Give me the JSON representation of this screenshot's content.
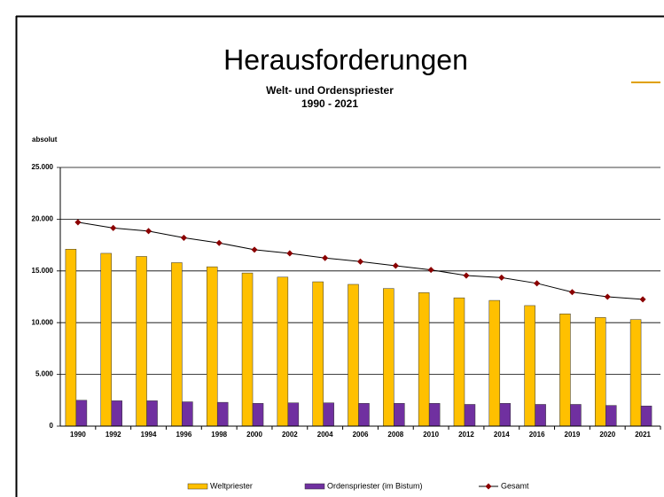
{
  "chart_data": {
    "type": "bar",
    "title": "Herausforderungen",
    "subtitle": [
      "Welt- und Ordenspriester",
      "1990 - 2021"
    ],
    "y_axis_label": "absolut",
    "categories": [
      "1990",
      "1992",
      "1994",
      "1996",
      "1998",
      "2000",
      "2002",
      "2004",
      "2006",
      "2008",
      "2010",
      "2012",
      "2014",
      "2016",
      "2019",
      "2020",
      "2021"
    ],
    "series": [
      {
        "name": "Weltpriester",
        "type": "bar",
        "color": "#ffc000",
        "values": [
          17100,
          16700,
          16400,
          15800,
          15400,
          14800,
          14400,
          13950,
          13700,
          13300,
          12900,
          12400,
          12150,
          11650,
          10850,
          10500,
          10300
        ]
      },
      {
        "name": "Ordenspriester (im Bistum)",
        "type": "bar",
        "color": "#7030a0",
        "values": [
          2500,
          2450,
          2450,
          2350,
          2300,
          2200,
          2250,
          2250,
          2200,
          2200,
          2200,
          2100,
          2200,
          2100,
          2100,
          2000,
          1950
        ]
      },
      {
        "name": "Gesamt",
        "type": "line",
        "color": "#8b0000",
        "values": [
          19700,
          19150,
          18850,
          18200,
          17700,
          17050,
          16700,
          16250,
          15900,
          15500,
          15100,
          14550,
          14350,
          13800,
          12950,
          12500,
          12250
        ]
      }
    ],
    "ylim": [
      0,
      25000
    ],
    "yticks": [
      0,
      {
        "value": 5000,
        "label": "5.000"
      },
      {
        "value": 10000,
        "label": "10.000"
      },
      {
        "value": 15000,
        "label": "15.000"
      },
      {
        "value": 20000,
        "label": "20.000"
      },
      {
        "value": 25000,
        "label": "25.000"
      }
    ],
    "grid": true,
    "legend": "bottom"
  }
}
